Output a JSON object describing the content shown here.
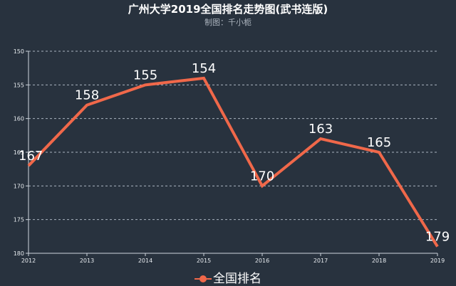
{
  "header": {
    "title": "广州大学2019全国排名走势图(武书连版)",
    "subtitle": "制图：千小栀"
  },
  "legend": {
    "label": "全国排名",
    "color": "#f0684a"
  },
  "chart_data": {
    "type": "line",
    "title": "广州大学2019全国排名走势图(武书连版)",
    "subtitle": "制图：千小栀",
    "xlabel": "",
    "ylabel": "",
    "categories": [
      "2012",
      "2013",
      "2014",
      "2015",
      "2016",
      "2017",
      "2018",
      "2019"
    ],
    "series": [
      {
        "name": "全国排名",
        "values": [
          167,
          158,
          155,
          154,
          170,
          163,
          165,
          179
        ],
        "color": "#f0684a"
      }
    ],
    "yticks": [
      150,
      155,
      160,
      165,
      170,
      175,
      180
    ],
    "ylim": [
      150,
      180
    ],
    "y_inverted": true,
    "grid": true,
    "legend_position": "bottom",
    "background": "#28323e"
  }
}
